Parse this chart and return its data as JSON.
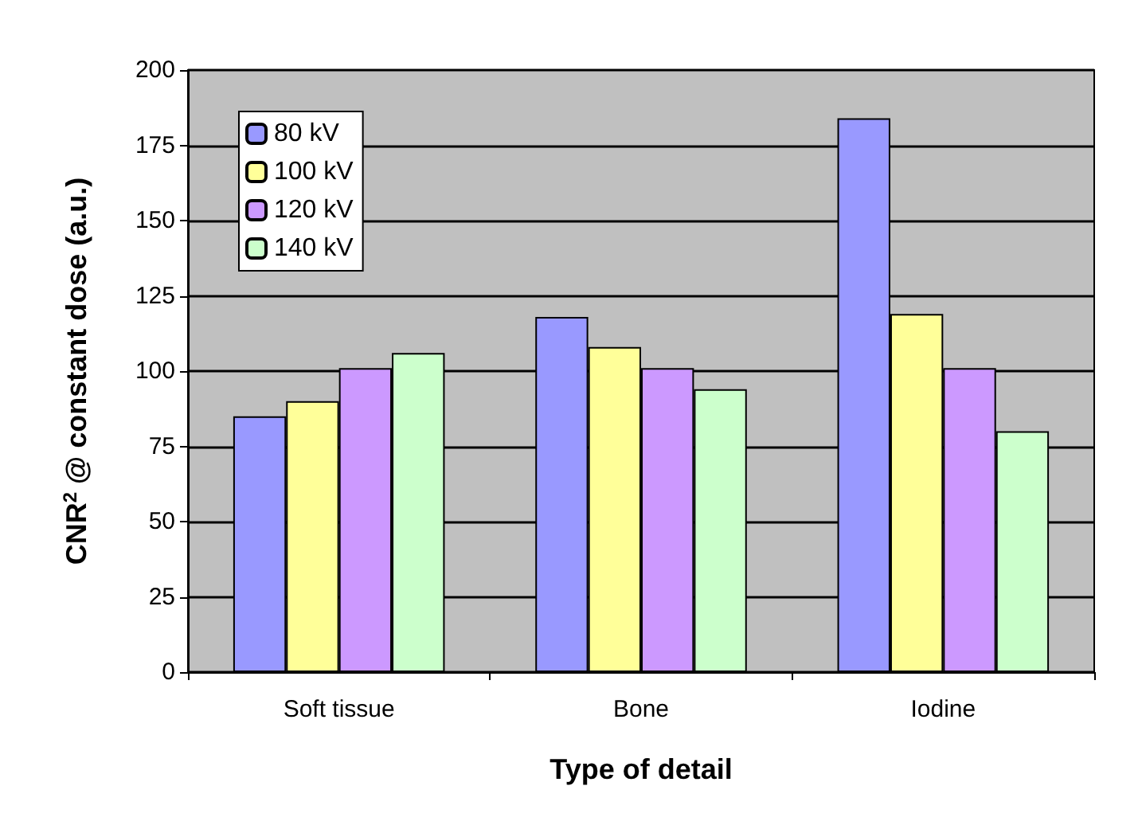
{
  "chart_data": {
    "type": "bar",
    "xlabel": "Type of detail",
    "ylabel": "CNR$^{2}$ @ constant dose (a.u.)",
    "categories": [
      "Soft tissue",
      "Bone",
      "Iodine"
    ],
    "series": [
      {
        "name": "80 kV",
        "color": "#9999ff",
        "values": [
          85,
          118,
          184
        ]
      },
      {
        "name": "100 kV",
        "color": "#ffff99",
        "values": [
          90,
          108,
          119
        ]
      },
      {
        "name": "120 kV",
        "color": "#cc99ff",
        "values": [
          101,
          101,
          101
        ]
      },
      {
        "name": "140 kV",
        "color": "#ccffcc",
        "values": [
          106,
          94,
          80
        ]
      }
    ],
    "ylim": [
      0,
      200
    ],
    "yticks": [
      0,
      25,
      50,
      75,
      100,
      125,
      150,
      175,
      200
    ],
    "grid": "y",
    "legend": "top left"
  }
}
